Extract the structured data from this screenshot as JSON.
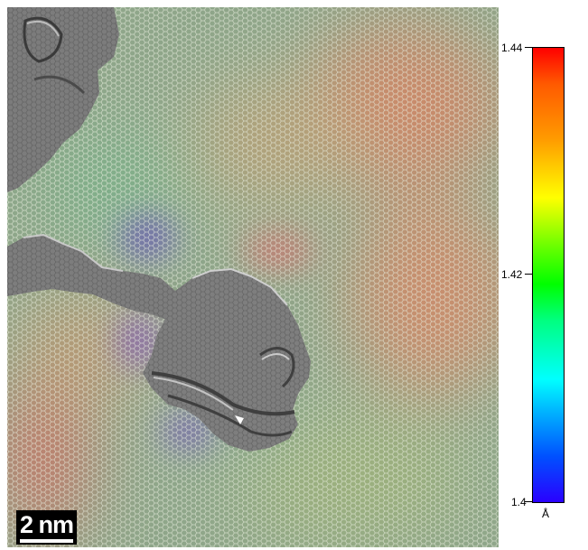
{
  "scale_bar": {
    "label": "2 nm"
  },
  "colorbar": {
    "max_label": "1.44",
    "mid_label": "1.42",
    "min_label": "1.4",
    "unit": "Å",
    "range": [
      1.4,
      1.44
    ],
    "colors": [
      "#ff0000",
      "#ff9a00",
      "#ffff00",
      "#00ff00",
      "#00ffff",
      "#0050ff",
      "#2a00ff"
    ]
  }
}
